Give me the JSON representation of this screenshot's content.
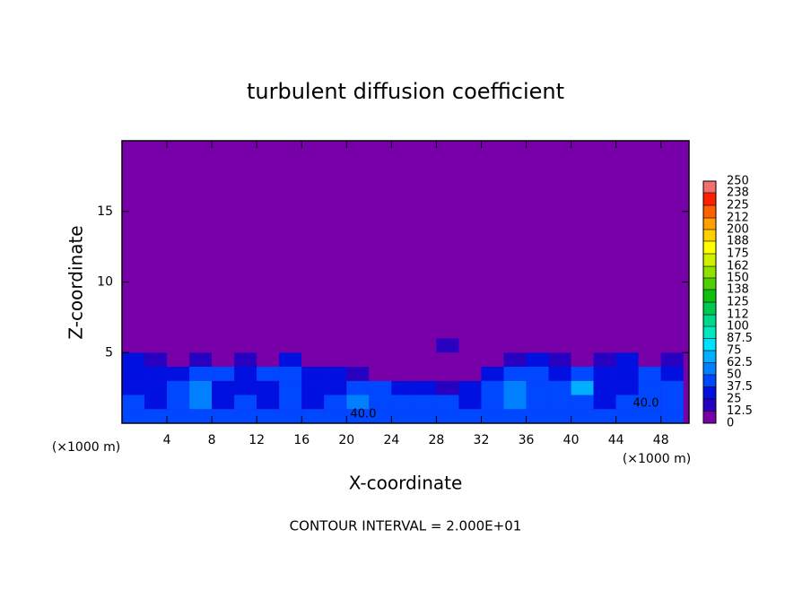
{
  "chart_data": {
    "type": "contour",
    "title": "turbulent diffusion coefficient",
    "x_label": "X-coordinate",
    "y_label": "Z-coordinate",
    "x_unit": "(×1000 m)",
    "footer": "CONTOUR INTERVAL = 2.000E+01",
    "xlim": [
      0,
      50.5
    ],
    "xticks": [
      4,
      8,
      12,
      16,
      20,
      24,
      28,
      32,
      36,
      40,
      44,
      48
    ],
    "ylim": [
      0,
      20
    ],
    "yticks": [
      5,
      10,
      15
    ],
    "x": [
      1,
      3,
      5,
      7,
      9,
      11,
      13,
      15,
      17,
      19,
      21,
      23,
      25,
      27,
      29,
      31,
      33,
      35,
      37,
      39,
      41,
      43,
      45,
      47,
      49
    ],
    "z": [
      0.5,
      1.5,
      2.5,
      3.5,
      4.5,
      5.5
    ],
    "values": [
      [
        45,
        40,
        42,
        45,
        38,
        40,
        44,
        42,
        40,
        45,
        48,
        40,
        42,
        44,
        40,
        38,
        45,
        42,
        40,
        44,
        46,
        42,
        40,
        44,
        42
      ],
      [
        40,
        35,
        38,
        50,
        35,
        40,
        30,
        45,
        35,
        40,
        50,
        38,
        40,
        42,
        38,
        36,
        45,
        55,
        40,
        42,
        48,
        35,
        38,
        40,
        45
      ],
      [
        35,
        30,
        40,
        55,
        30,
        35,
        32,
        40,
        30,
        35,
        45,
        40,
        30,
        25,
        20,
        30,
        40,
        50,
        45,
        40,
        70,
        30,
        35,
        38,
        40
      ],
      [
        30,
        25,
        35,
        45,
        40,
        30,
        40,
        45,
        35,
        30,
        20,
        0,
        0,
        0,
        0,
        0,
        25,
        40,
        40,
        35,
        45,
        35,
        30,
        40,
        35
      ],
      [
        25,
        20,
        0,
        20,
        0,
        15,
        0,
        30,
        0,
        0,
        0,
        0,
        0,
        0,
        0,
        0,
        0,
        20,
        25,
        20,
        0,
        20,
        25,
        0,
        20
      ],
      [
        0,
        0,
        0,
        0,
        0,
        0,
        0,
        0,
        0,
        0,
        0,
        0,
        0,
        0,
        15,
        0,
        0,
        0,
        0,
        0,
        0,
        0,
        0,
        0,
        0
      ]
    ],
    "annotations": [
      "40.0",
      "40.0"
    ],
    "levels": [
      0,
      12.5,
      25,
      37.5,
      50,
      62.5,
      75,
      87.5,
      100,
      112,
      125,
      138,
      150,
      162,
      175,
      188,
      200,
      212,
      225,
      238,
      250
    ],
    "colors": [
      "#7800a8",
      "#2800c0",
      "#0010e0",
      "#0048ff",
      "#0080ff",
      "#00b0ff",
      "#00e0ff",
      "#00e8c0",
      "#00d890",
      "#00c850",
      "#10c010",
      "#50d000",
      "#90e000",
      "#d0f000",
      "#ffff00",
      "#ffd000",
      "#ffa000",
      "#ff6000",
      "#ff2000",
      "#f07070"
    ]
  }
}
